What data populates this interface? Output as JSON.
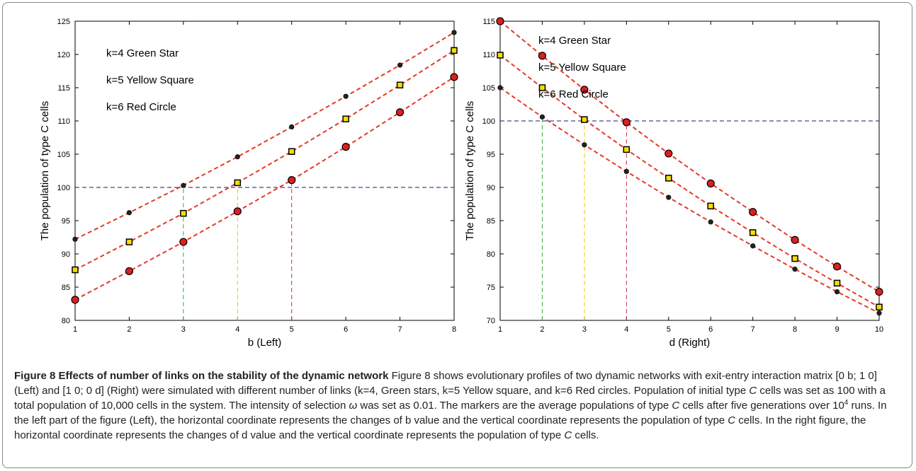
{
  "chart_data": [
    {
      "type": "scatter",
      "title": "",
      "xlabel": "b (Left)",
      "ylabel": "The population of type C cells",
      "xlim": [
        1,
        8
      ],
      "ylim": [
        80,
        125
      ],
      "xticks": [
        1,
        2,
        3,
        4,
        5,
        6,
        7,
        8
      ],
      "yticks": [
        80,
        85,
        90,
        95,
        100,
        105,
        110,
        115,
        120,
        125
      ],
      "grid": false,
      "x": [
        1,
        2,
        3,
        4,
        5,
        6,
        7,
        8
      ],
      "series": [
        {
          "name": "k=4 Green Star",
          "marker": "star",
          "color": "#222222",
          "values": [
            92.2,
            96.2,
            100.3,
            104.6,
            109.1,
            113.7,
            118.4,
            123.3
          ]
        },
        {
          "name": "k=5 Yellow Square",
          "marker": "square",
          "color": "#f1e000",
          "values": [
            87.6,
            91.8,
            96.1,
            100.7,
            105.4,
            110.3,
            115.4,
            120.6
          ]
        },
        {
          "name": "k=6 Red Circle",
          "marker": "circle",
          "color": "#dd1f1f",
          "values": [
            83.1,
            87.4,
            91.8,
            96.4,
            101.1,
            106.1,
            111.3,
            116.6
          ]
        }
      ],
      "reference_lines": {
        "horizontal_y": 100,
        "vertical_x": [
          3,
          4,
          5
        ]
      },
      "legend_placement": "top-left"
    },
    {
      "type": "scatter",
      "title": "",
      "xlabel": "d (Right)",
      "ylabel": "The population of type C cells",
      "xlim": [
        1,
        10
      ],
      "ylim": [
        70,
        115
      ],
      "xticks": [
        1,
        2,
        3,
        4,
        5,
        6,
        7,
        8,
        9,
        10
      ],
      "yticks": [
        70,
        75,
        80,
        85,
        90,
        95,
        100,
        105,
        110,
        115
      ],
      "grid": false,
      "x": [
        1,
        2,
        3,
        4,
        5,
        6,
        7,
        8,
        9,
        10
      ],
      "series": [
        {
          "name": "k=4 Green Star",
          "marker": "star",
          "color": "#222222",
          "values": [
            105,
            100.6,
            96.4,
            92.4,
            88.5,
            84.8,
            81.2,
            77.7,
            74.3,
            71.1
          ]
        },
        {
          "name": "k=5 Yellow Square",
          "marker": "square",
          "color": "#f1e000",
          "values": [
            109.9,
            105,
            100.2,
            95.7,
            91.4,
            87.2,
            83.2,
            79.3,
            75.6,
            72
          ]
        },
        {
          "name": "k=6 Red Circle",
          "marker": "circle",
          "color": "#dd1f1f",
          "values": [
            115,
            109.8,
            104.7,
            99.8,
            95.1,
            90.6,
            86.3,
            82.1,
            78.1,
            74.3
          ]
        }
      ],
      "reference_lines": {
        "horizontal_y": 100,
        "vertical_x": [
          2,
          3,
          4
        ]
      },
      "legend_placement": "top-right"
    }
  ],
  "colors": {
    "fit_line": "#e33a2a",
    "ref_horizontal": "#1a1a6e",
    "ref_vertical": [
      "#3caa3c",
      "#e8c800",
      "#c0304a"
    ]
  },
  "caption": {
    "title": "Figure 8 Effects of number of links on the stability of the dynamic network",
    "p1": " Figure 8 shows evolutionary profiles of two dynamic networks with exit-entry interaction matrix [0 b; 1 0] (Left) and [1 0; 0 d] (Right) were simulated with different number of links (k=4, Green stars, k=5 Yellow square, and k=6 Red circles. Population of initial type ",
    "c1": "C",
    "p2": " cells was set as 100 with a total population of 10,000 cells in the system. The intensity of selection ",
    "omega": "ω",
    "p3": " was set as 0.01. The markers are the average populations of type ",
    "c2": "C",
    "p4": " cells after five generations over 10",
    "sup": "4",
    "p5": " runs. In the left part of the figure (Left), the horizontal coordinate represents the changes of b value and the vertical coordinate represents the population of type ",
    "c3": "C",
    "p6": " cells. In the right figure, the horizontal coordinate represents the changes of d value and the vertical coordinate represents the population of type ",
    "c4": "C",
    "p7": " cells."
  }
}
